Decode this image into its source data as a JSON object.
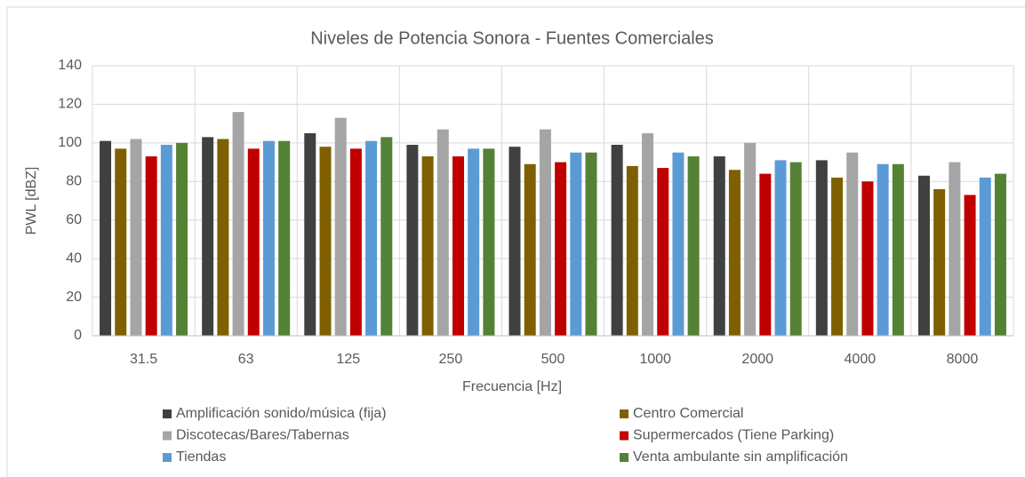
{
  "chart_data": {
    "type": "bar",
    "title": "Niveles de Potencia Sonora - Fuentes Comerciales",
    "x_label": "Frecuencia [Hz]",
    "y_label": "PWL [dBZ]",
    "categories": [
      "31.5",
      "63",
      "125",
      "250",
      "500",
      "1000",
      "2000",
      "4000",
      "8000"
    ],
    "series": [
      {
        "name": "Amplificación sonido/música (fija)",
        "color": "#404040",
        "values": [
          101,
          103,
          105,
          99,
          98,
          99,
          93,
          91,
          83
        ]
      },
      {
        "name": "Centro Comercial",
        "color": "#7f6000",
        "values": [
          97,
          102,
          98,
          93,
          89,
          88,
          86,
          82,
          76
        ]
      },
      {
        "name": "Discotecas/Bares/Tabernas",
        "color": "#a5a5a5",
        "values": [
          102,
          116,
          113,
          107,
          107,
          105,
          100,
          95,
          90
        ]
      },
      {
        "name": "Supermercados (Tiene Parking)",
        "color": "#c00000",
        "values": [
          93,
          97,
          97,
          93,
          90,
          87,
          84,
          80,
          73
        ]
      },
      {
        "name": "Tiendas",
        "color": "#5b9bd5",
        "values": [
          99,
          101,
          101,
          97,
          95,
          95,
          91,
          89,
          82
        ]
      },
      {
        "name": "Venta ambulante sin amplificación",
        "color": "#548235",
        "values": [
          100,
          101,
          103,
          97,
          95,
          93,
          90,
          89,
          84
        ]
      }
    ],
    "ylim": [
      0,
      140
    ],
    "yticks": [
      0,
      20,
      40,
      60,
      80,
      100,
      120,
      140
    ],
    "grid": true,
    "legend": "bottom"
  }
}
